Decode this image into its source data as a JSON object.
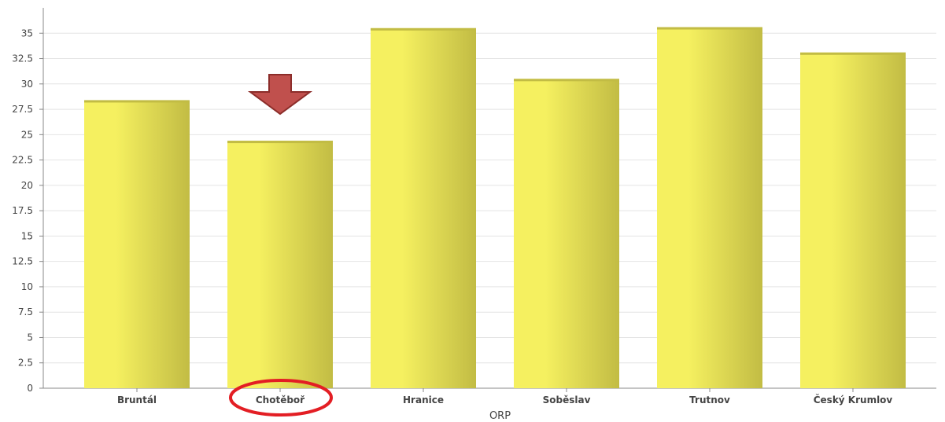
{
  "chart_data": {
    "type": "bar",
    "title": "",
    "xlabel": "ORP",
    "ylabel": "",
    "categories": [
      "Bruntál",
      "Chotěboř",
      "Hranice",
      "Soběslav",
      "Trutnov",
      "Český Krumlov"
    ],
    "values": [
      28.4,
      24.4,
      35.5,
      30.5,
      35.6,
      33.1
    ],
    "ylim": [
      0,
      37.5
    ],
    "yticks": [
      "0",
      "2.5",
      "5",
      "7.5",
      "10",
      "12.5",
      "15",
      "17.5",
      "20",
      "22.5",
      "25",
      "27.5",
      "30",
      "32.5",
      "35"
    ],
    "grid": true,
    "bar_color": "#f5f060",
    "bar_shade_color": "#c2bc44",
    "highlight": {
      "category": "Chotěboř",
      "arrow_color": "#c0504d",
      "circle_color": "#e31e24"
    }
  }
}
